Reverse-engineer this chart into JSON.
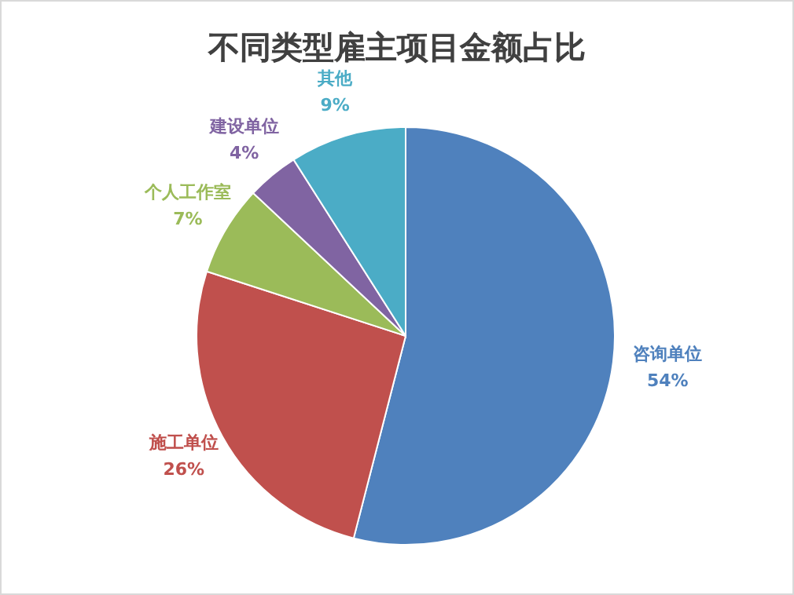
{
  "chart_data": {
    "type": "pie",
    "title": "不同类型雇主项目金额占比",
    "categories": [
      "咨询单位",
      "施工单位",
      "个人工作室",
      "建设单位",
      "其他"
    ],
    "values": [
      54,
      26,
      7,
      4,
      9
    ],
    "value_labels": [
      "54%",
      "26%",
      "7%",
      "4%",
      "9%"
    ],
    "colors": [
      "#4f81bd",
      "#c0504d",
      "#9bbb59",
      "#8064a2",
      "#4bacc6"
    ],
    "legend": false
  }
}
